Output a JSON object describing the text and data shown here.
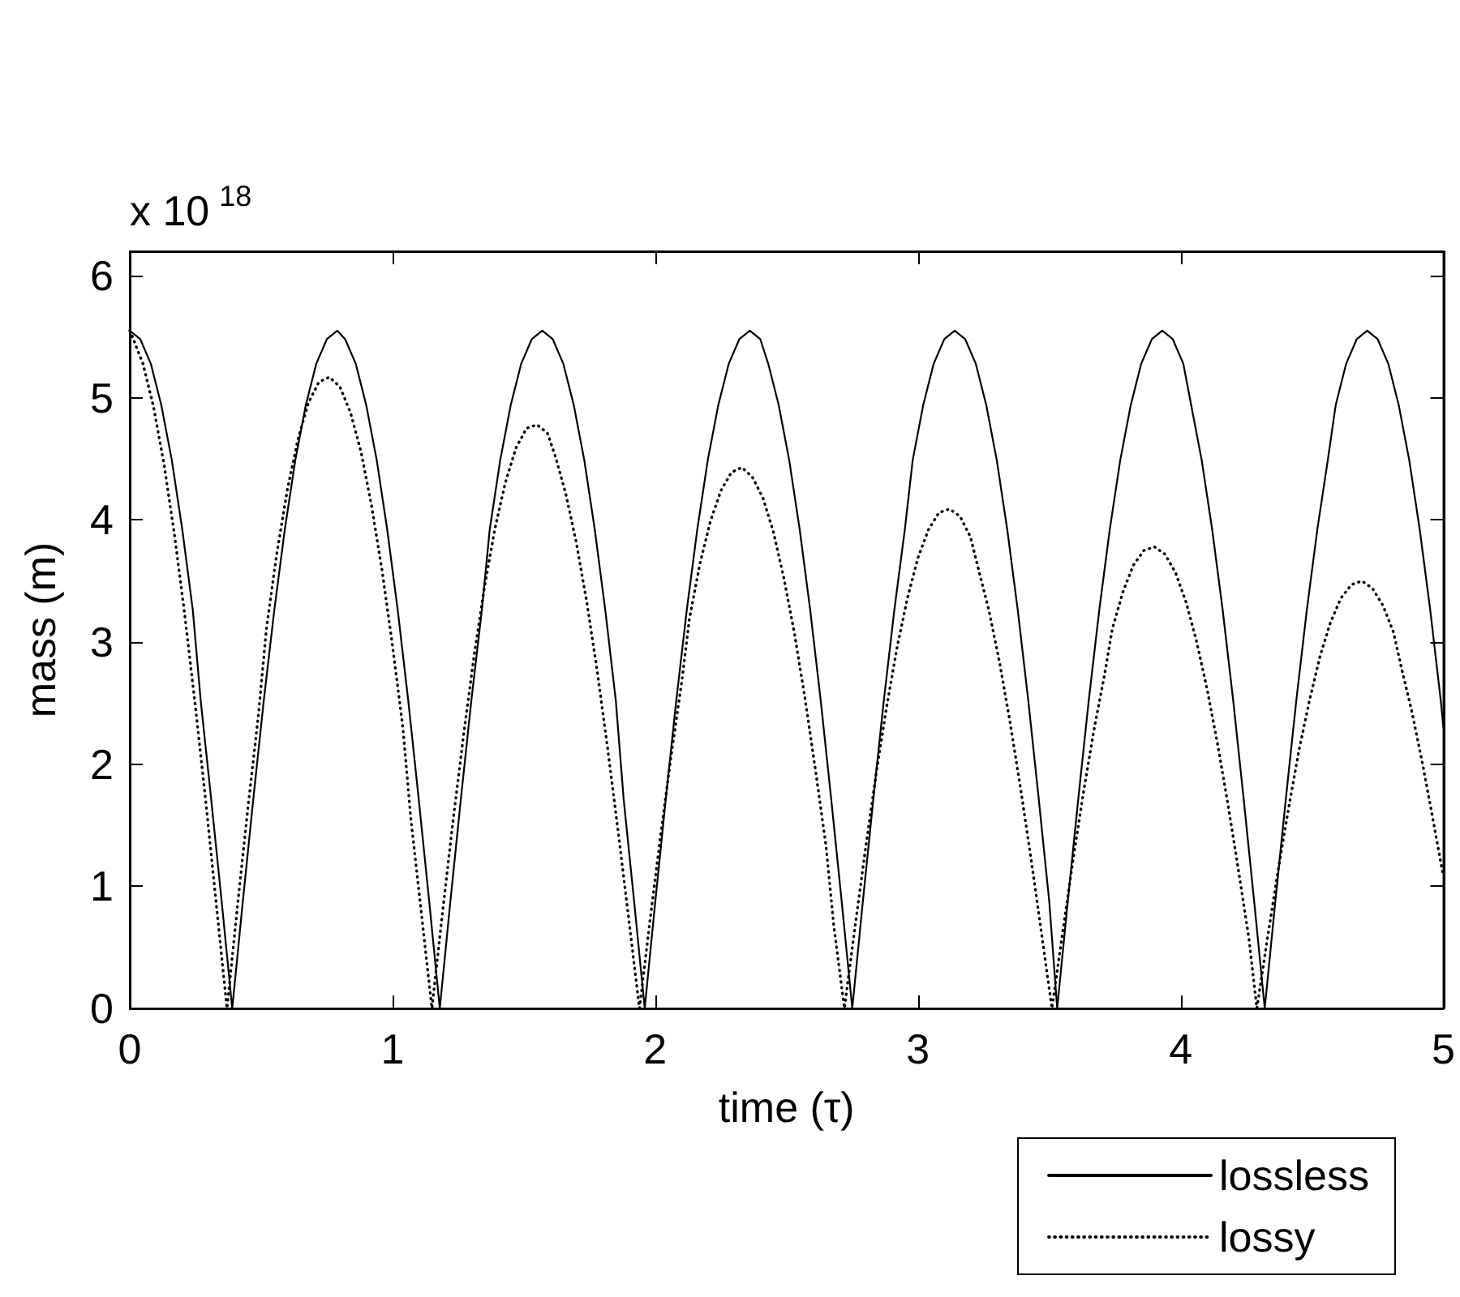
{
  "chart_data": {
    "type": "line",
    "xlabel": "time (τ)",
    "ylabel": "mass (m)",
    "annotations": [
      "x 10$^{18}$"
    ],
    "xlim": [
      0,
      5
    ],
    "xticks": [
      0,
      1,
      2,
      3,
      4,
      5
    ],
    "ylim": [
      0,
      6.2
    ],
    "yticks": [
      0,
      1,
      2,
      3,
      4,
      5,
      6
    ],
    "legend": "bottom right",
    "marker": "none",
    "series": [
      {
        "name": "lossless",
        "color": "#000000",
        "line_style": "solid",
        "x": [
          0,
          0.04,
          0.08,
          0.12,
          0.16,
          0.2,
          0.24,
          0.27,
          0.31,
          0.35,
          0.39,
          0.43,
          0.47,
          0.51,
          0.55,
          0.59,
          0.63,
          0.67,
          0.71,
          0.75,
          0.79,
          0.82,
          0.86,
          0.9,
          0.94,
          0.98,
          1.02,
          1.06,
          1.1,
          1.14,
          1.18,
          1.22,
          1.26,
          1.3,
          1.34,
          1.37,
          1.41,
          1.45,
          1.49,
          1.53,
          1.57,
          1.61,
          1.65,
          1.69,
          1.73,
          1.77,
          1.81,
          1.85,
          1.88,
          1.92,
          1.96,
          2,
          2.04,
          2.08,
          2.12,
          2.16,
          2.2,
          2.24,
          2.28,
          2.32,
          2.36,
          2.4,
          2.43,
          2.47,
          2.51,
          2.55,
          2.59,
          2.63,
          2.67,
          2.71,
          2.75,
          2.79,
          2.83,
          2.87,
          2.91,
          2.95,
          2.98,
          3.02,
          3.06,
          3.1,
          3.14,
          3.18,
          3.22,
          3.26,
          3.3,
          3.34,
          3.38,
          3.42,
          3.46,
          3.5,
          3.53,
          3.57,
          3.61,
          3.65,
          3.69,
          3.73,
          3.77,
          3.81,
          3.85,
          3.89,
          3.93,
          3.97,
          4.01,
          4.04,
          4.08,
          4.12,
          4.16,
          4.2,
          4.24,
          4.28,
          4.32,
          4.36,
          4.4,
          4.44,
          4.48,
          4.52,
          4.56,
          4.59,
          4.63,
          4.67,
          4.71,
          4.75,
          4.79,
          4.83,
          4.87,
          4.91,
          4.95,
          4.99,
          5
        ],
        "values": [
          5.55,
          5.48,
          5.28,
          4.94,
          4.49,
          3.92,
          3.26,
          2.52,
          1.71,
          0.87,
          0,
          0.87,
          1.71,
          2.52,
          3.26,
          3.92,
          4.49,
          4.94,
          5.28,
          5.48,
          5.55,
          5.48,
          5.28,
          4.94,
          4.49,
          3.92,
          3.26,
          2.52,
          1.71,
          0.87,
          0,
          0.87,
          1.71,
          2.52,
          3.26,
          3.92,
          4.49,
          4.94,
          5.28,
          5.48,
          5.55,
          5.48,
          5.28,
          4.94,
          4.49,
          3.92,
          3.26,
          2.52,
          1.71,
          0.87,
          0,
          0.87,
          1.71,
          2.52,
          3.26,
          3.92,
          4.49,
          4.94,
          5.28,
          5.48,
          5.55,
          5.48,
          5.28,
          4.94,
          4.49,
          3.92,
          3.26,
          2.52,
          1.71,
          0.87,
          0,
          0.87,
          1.71,
          2.52,
          3.26,
          3.92,
          4.49,
          4.94,
          5.28,
          5.48,
          5.55,
          5.48,
          5.28,
          4.94,
          4.49,
          3.92,
          3.26,
          2.52,
          1.71,
          0.87,
          0,
          0.87,
          1.71,
          2.52,
          3.26,
          3.92,
          4.49,
          4.94,
          5.28,
          5.48,
          5.55,
          5.48,
          5.28,
          4.94,
          4.49,
          3.92,
          3.26,
          2.52,
          1.71,
          0.87,
          0,
          0.87,
          1.71,
          2.52,
          3.26,
          3.92,
          4.49,
          4.94,
          5.28,
          5.48,
          5.55,
          5.48,
          5.28,
          4.94,
          4.49,
          3.92,
          3.26,
          2.52,
          2.3
        ]
      },
      {
        "name": "lossy",
        "color": "#000000",
        "line_style": "dotted",
        "x": [
          0,
          0.01,
          0.05,
          0.09,
          0.13,
          0.17,
          0.21,
          0.25,
          0.29,
          0.33,
          0.37,
          0.41,
          0.45,
          0.49,
          0.52,
          0.56,
          0.6,
          0.64,
          0.68,
          0.72,
          0.76,
          0.8,
          0.84,
          0.88,
          0.92,
          0.96,
          1,
          1.04,
          1.07,
          1.11,
          1.15,
          1.19,
          1.23,
          1.27,
          1.31,
          1.35,
          1.39,
          1.43,
          1.47,
          1.51,
          1.55,
          1.59,
          1.62,
          1.66,
          1.7,
          1.74,
          1.78,
          1.82,
          1.86,
          1.9,
          1.94,
          1.98,
          2.02,
          2.06,
          2.1,
          2.13,
          2.17,
          2.21,
          2.25,
          2.29,
          2.33,
          2.37,
          2.41,
          2.45,
          2.49,
          2.53,
          2.57,
          2.61,
          2.65,
          2.68,
          2.72,
          2.76,
          2.8,
          2.84,
          2.88,
          2.92,
          2.96,
          3,
          3.04,
          3.08,
          3.12,
          3.16,
          3.2,
          3.23,
          3.27,
          3.31,
          3.35,
          3.39,
          3.43,
          3.47,
          3.51,
          3.55,
          3.59,
          3.63,
          3.67,
          3.71,
          3.74,
          3.78,
          3.82,
          3.86,
          3.9,
          3.94,
          3.98,
          4.02,
          4.06,
          4.1,
          4.14,
          4.18,
          4.22,
          4.26,
          4.29,
          4.33,
          4.37,
          4.41,
          4.45,
          4.49,
          4.53,
          4.57,
          4.61,
          4.65,
          4.69,
          4.73,
          4.77,
          4.81,
          4.84,
          4.88,
          4.92,
          4.96,
          5
        ],
        "values": [
          5.55,
          5.5,
          5.28,
          4.93,
          4.46,
          3.88,
          3.21,
          2.47,
          1.68,
          0.84,
          0,
          0.84,
          1.65,
          2.41,
          3.11,
          3.73,
          4.25,
          4.66,
          4.96,
          5.13,
          5.17,
          5.09,
          4.88,
          4.56,
          4.12,
          3.59,
          2.97,
          2.29,
          1.55,
          0.78,
          0,
          0.78,
          1.53,
          2.23,
          2.88,
          3.45,
          3.93,
          4.31,
          4.59,
          4.75,
          4.78,
          4.71,
          4.52,
          4.21,
          3.81,
          3.32,
          2.75,
          2.11,
          1.43,
          0.72,
          0,
          0.72,
          1.41,
          2.06,
          2.66,
          3.19,
          3.64,
          3.99,
          4.24,
          4.39,
          4.43,
          4.35,
          4.18,
          3.9,
          3.52,
          3.07,
          2.54,
          1.95,
          1.33,
          0.67,
          0,
          0.66,
          1.3,
          1.91,
          2.46,
          2.95,
          3.36,
          3.69,
          3.92,
          4.06,
          4.09,
          4.03,
          3.86,
          3.6,
          3.26,
          2.84,
          2.35,
          1.81,
          1.23,
          0.62,
          0,
          0.61,
          1.21,
          1.77,
          2.28,
          2.73,
          3.11,
          3.41,
          3.63,
          3.75,
          3.78,
          3.72,
          3.57,
          3.33,
          3.01,
          2.62,
          2.17,
          1.67,
          1.13,
          0.57,
          0,
          0.57,
          1.12,
          1.63,
          2.11,
          2.52,
          2.88,
          3.16,
          3.36,
          3.47,
          3.5,
          3.44,
          3.3,
          3.08,
          2.79,
          2.43,
          2.01,
          1.55,
          1.08
        ]
      }
    ]
  }
}
